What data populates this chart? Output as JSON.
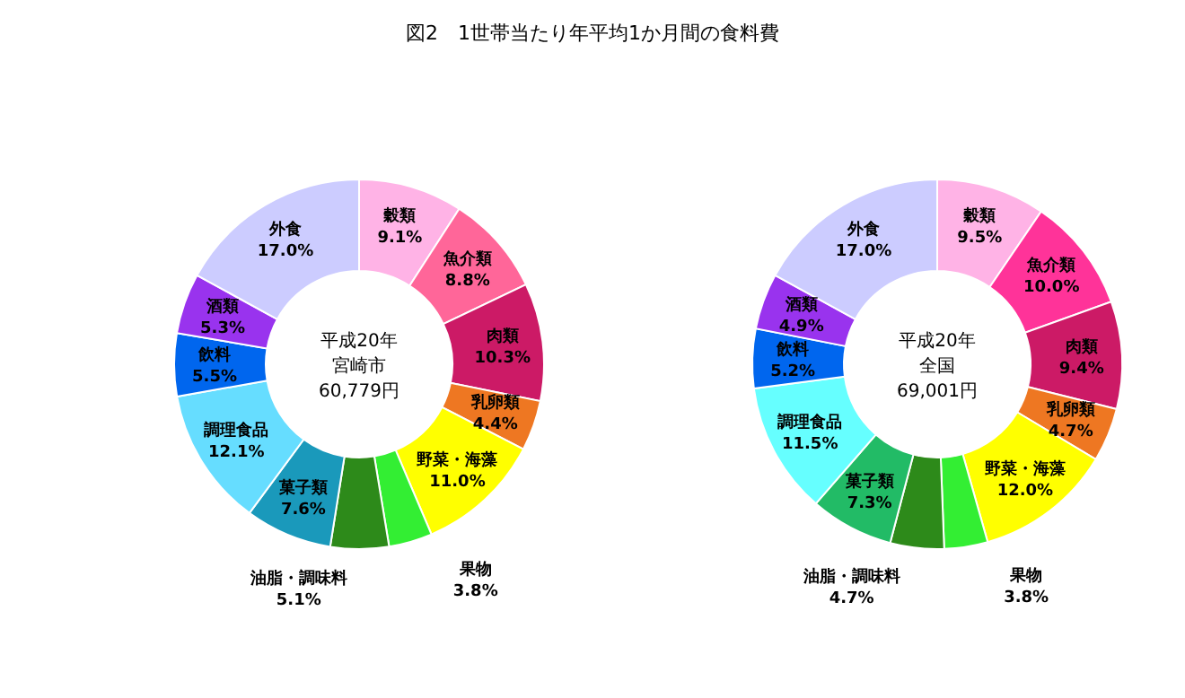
{
  "chart_data": [
    {
      "type": "donut",
      "title": "図2　1世帯当たり年平均1か月間の食料費",
      "categories": [
        "穀類",
        "魚介類",
        "肉類",
        "乳卵類",
        "野菜・海藻",
        "果物",
        "油脂・調味料",
        "菓子類",
        "調理食品",
        "飲料",
        "酒類",
        "外食"
      ],
      "values": [
        9.1,
        8.8,
        10.3,
        4.4,
        11.0,
        3.8,
        5.1,
        7.6,
        12.1,
        5.5,
        5.3,
        17.0
      ],
      "value_labels": [
        "9.1%",
        "8.8%",
        "10.3%",
        "4.4%",
        "11.0%",
        "3.8%",
        "5.1%",
        "7.6%",
        "12.1%",
        "5.5%",
        "5.3%",
        "17.0%"
      ],
      "colors": [
        "#ffb3e6",
        "#ff6699",
        "#cc1a66",
        "#ee7722",
        "#ffff00",
        "#33ee33",
        "#2d8a1a",
        "#1a99bb",
        "#66ddff",
        "#0066ee",
        "#9933ee",
        "#ccccff"
      ],
      "annotations": [
        "平成20年",
        "宮崎市",
        "60,779円"
      ]
    },
    {
      "type": "donut",
      "categories": [
        "穀類",
        "魚介類",
        "肉類",
        "乳卵類",
        "野菜・海藻",
        "果物",
        "油脂・調味料",
        "菓子類",
        "調理食品",
        "飲料",
        "酒類",
        "外食"
      ],
      "values": [
        9.5,
        10.0,
        9.4,
        4.7,
        12.0,
        3.8,
        4.7,
        7.3,
        11.5,
        5.2,
        4.9,
        17.0
      ],
      "value_labels": [
        "9.5%",
        "10.0%",
        "9.4%",
        "4.7%",
        "12.0%",
        "3.8%",
        "4.7%",
        "7.3%",
        "11.5%",
        "5.2%",
        "4.9%",
        "17.0%"
      ],
      "colors": [
        "#ffb3e6",
        "#ff3399",
        "#cc1a66",
        "#ee7722",
        "#ffff00",
        "#33ee33",
        "#2d8a1a",
        "#22bb66",
        "#66ffff",
        "#0066ee",
        "#9933ee",
        "#ccccff"
      ],
      "annotations": [
        "平成20年",
        "全国",
        "69,001円"
      ]
    }
  ]
}
